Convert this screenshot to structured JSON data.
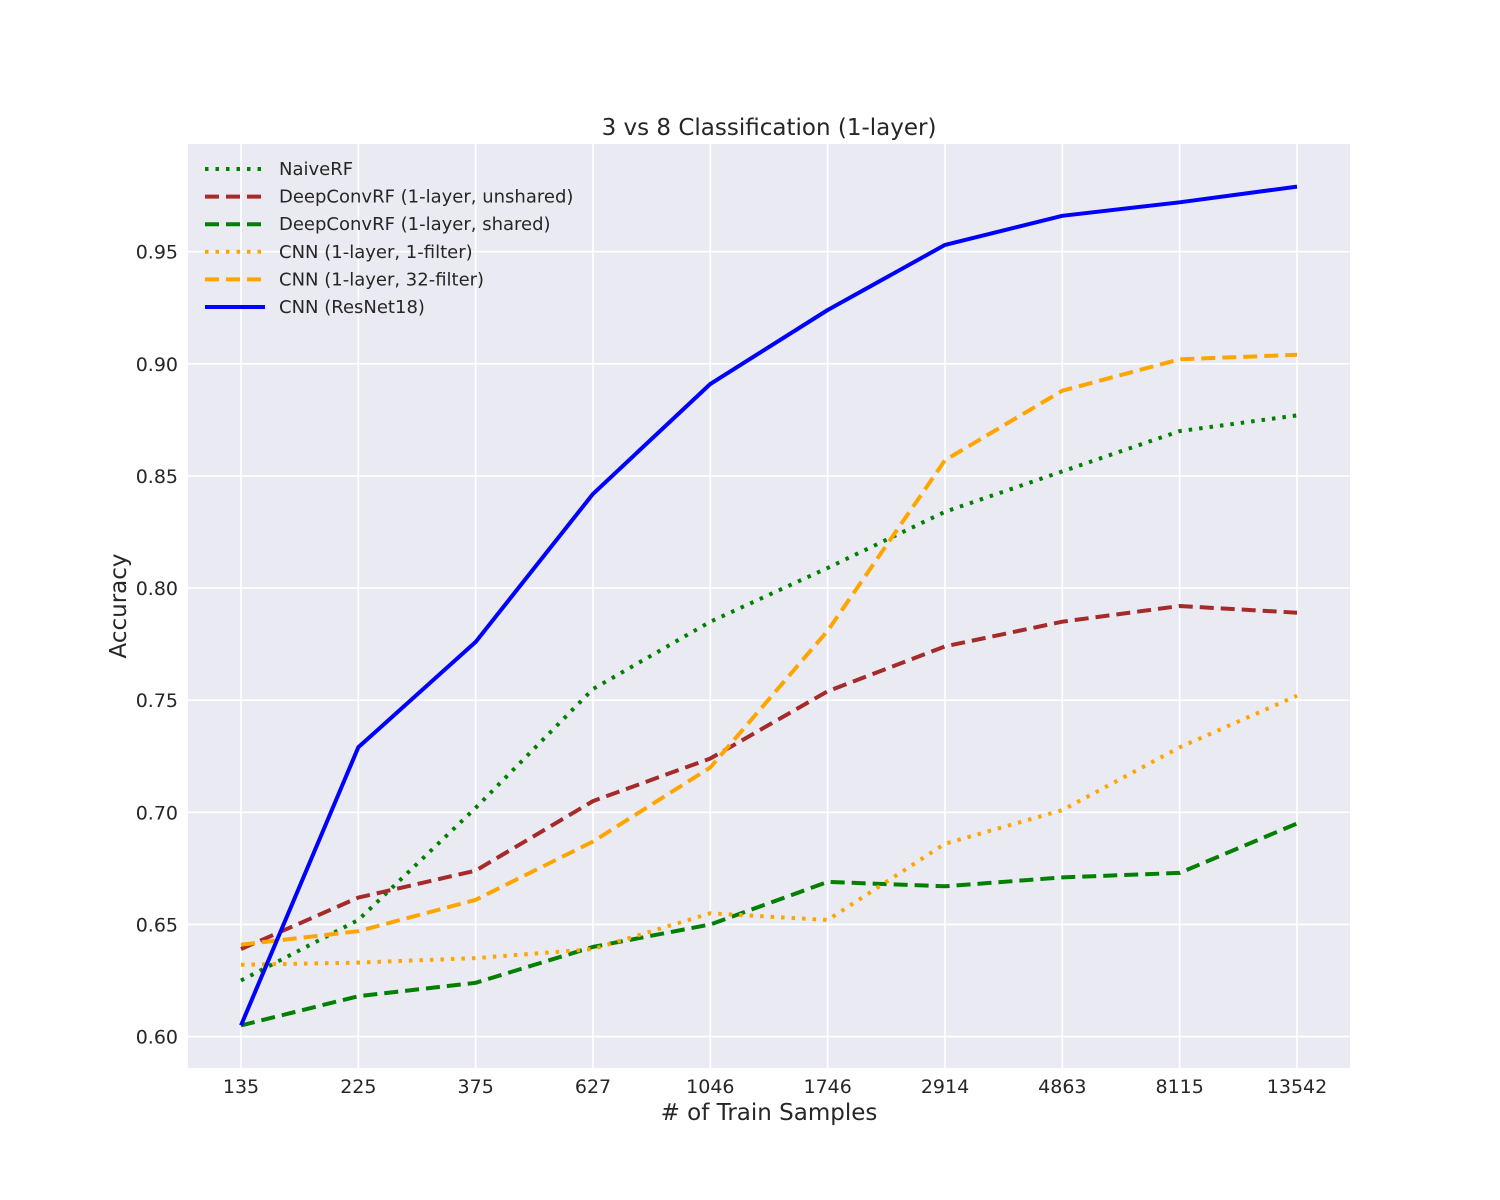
{
  "chart_data": {
    "type": "line",
    "title": "3 vs 8 Classification (1-layer)",
    "xlabel": "# of Train Samples",
    "ylabel": "Accuracy",
    "categories": [
      "135",
      "225",
      "375",
      "627",
      "1046",
      "1746",
      "2914",
      "4863",
      "8115",
      "13542"
    ],
    "ylim": [
      0.586,
      0.998
    ],
    "yticks": [
      "0.60",
      "0.65",
      "0.70",
      "0.75",
      "0.80",
      "0.85",
      "0.90",
      "0.95"
    ],
    "grid": true,
    "legend_position": "top-left",
    "series": [
      {
        "name": "NaiveRF",
        "color": "#008000",
        "style": "dotted",
        "values": [
          0.625,
          0.652,
          0.702,
          0.755,
          0.785,
          0.809,
          0.834,
          0.852,
          0.87,
          0.877
        ]
      },
      {
        "name": "DeepConvRF (1-layer, unshared)",
        "color": "#a52a2a",
        "style": "dashed",
        "values": [
          0.639,
          0.662,
          0.674,
          0.705,
          0.724,
          0.754,
          0.774,
          0.785,
          0.792,
          0.789
        ]
      },
      {
        "name": "DeepConvRF (1-layer, shared)",
        "color": "#008000",
        "style": "dashed",
        "values": [
          0.605,
          0.618,
          0.624,
          0.64,
          0.65,
          0.669,
          0.667,
          0.671,
          0.673,
          0.695
        ]
      },
      {
        "name": "CNN (1-layer, 1-filter)",
        "color": "#ffa500",
        "style": "dotted",
        "values": [
          0.632,
          0.633,
          0.635,
          0.639,
          0.655,
          0.652,
          0.686,
          0.701,
          0.729,
          0.752
        ]
      },
      {
        "name": "CNN (1-layer, 32-filter)",
        "color": "#ffa500",
        "style": "dashed",
        "values": [
          0.641,
          0.647,
          0.661,
          0.687,
          0.72,
          0.781,
          0.857,
          0.888,
          0.902,
          0.904
        ]
      },
      {
        "name": "CNN (ResNet18)",
        "color": "#0000ff",
        "style": "solid",
        "values": [
          0.605,
          0.729,
          0.776,
          0.842,
          0.891,
          0.924,
          0.953,
          0.966,
          0.972,
          0.979
        ]
      }
    ]
  }
}
